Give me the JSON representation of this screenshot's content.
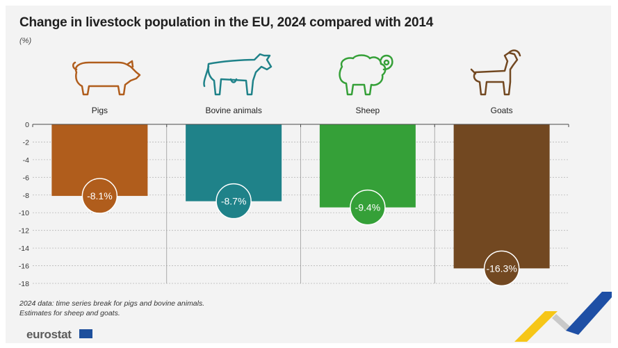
{
  "title": "Change in livestock population in the EU, 2024 compared with 2014",
  "unit": "(%)",
  "notes": [
    "2024 data: time series break for pigs and bovine animals.",
    "Estimates for sheep and goats."
  ],
  "logo_text": "eurostat",
  "colors": {
    "pigs": "#b05d1c",
    "bovine": "#1f8289",
    "sheep": "#35a038",
    "goats": "#724821",
    "accent_yellow": "#f6c618",
    "accent_blue": "#1e4fa5"
  },
  "icons": [
    "pig-icon",
    "cow-icon",
    "sheep-icon",
    "goat-icon"
  ],
  "chart_data": {
    "type": "bar",
    "title": "Change in livestock population in the EU, 2024 compared with 2014",
    "ylabel": "(%)",
    "categories": [
      "Pigs",
      "Bovine animals",
      "Sheep",
      "Goats"
    ],
    "values": [
      -8.1,
      -8.7,
      -9.4,
      -16.3
    ],
    "data_labels": [
      "-8.1%",
      "-8.7%",
      "-9.4%",
      "-16.3%"
    ],
    "ylim": [
      -18,
      0
    ],
    "yticks": [
      0,
      -2,
      -4,
      -6,
      -8,
      -10,
      -12,
      -14,
      -16,
      -18
    ],
    "grid": true
  }
}
